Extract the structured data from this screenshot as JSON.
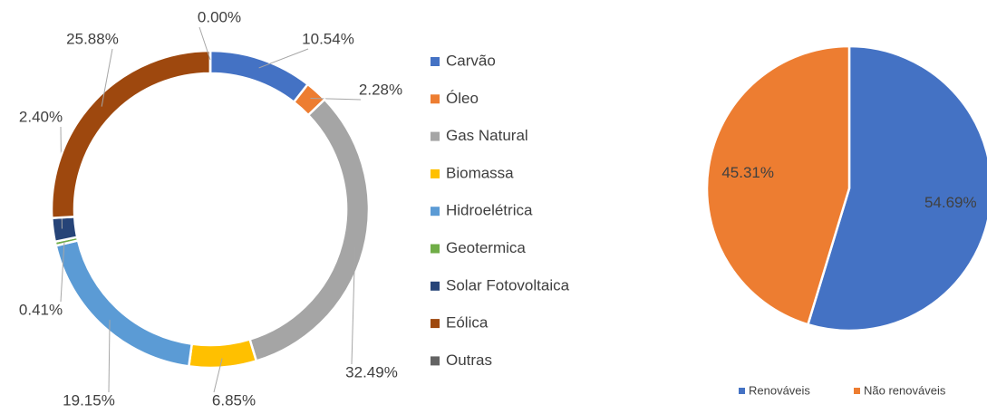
{
  "chart_data": [
    {
      "type": "donut",
      "categories": [
        "Carvão",
        "Óleo",
        "Gas Natural",
        "Biomassa",
        "Hidroelétrica",
        "Geotermica",
        "Solar Fotovoltaica",
        "Eólica",
        "Outras"
      ],
      "values": [
        10.54,
        2.28,
        32.49,
        6.85,
        19.15,
        0.41,
        2.4,
        25.88,
        0.0
      ],
      "value_labels": [
        "10.54%",
        "2.28%",
        "32.49%",
        "6.85%",
        "19.15%",
        "0.41%",
        "2.40%",
        "25.88%",
        "0.00%"
      ],
      "colors": [
        "#4472c4",
        "#ed7d31",
        "#a5a5a5",
        "#ffc000",
        "#5b9bd5",
        "#70ad47",
        "#264478",
        "#9e480e",
        "#636363"
      ],
      "legend": "right"
    },
    {
      "type": "pie",
      "categories": [
        "Renováveis",
        "Não renováveis"
      ],
      "values": [
        54.69,
        45.31
      ],
      "value_labels": [
        "54.69%",
        "45.31%"
      ],
      "colors": [
        "#4472c4",
        "#ed7d31"
      ],
      "legend": "bottom"
    }
  ]
}
